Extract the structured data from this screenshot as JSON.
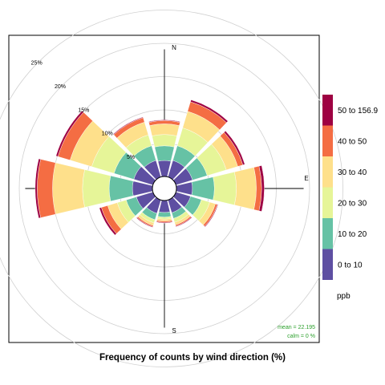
{
  "chart_data": {
    "type": "windrose",
    "title": "Frequency of counts by wind direction (%)",
    "radial_axis": {
      "max": 25,
      "ticks": [
        5,
        10,
        15,
        20,
        25
      ],
      "tick_labels": [
        "5%",
        "10%",
        "15%",
        "20%",
        "25%"
      ]
    },
    "compass_labels": [
      "N",
      "E",
      "S"
    ],
    "directions_deg": [
      0,
      30,
      60,
      90,
      120,
      150,
      180,
      210,
      240,
      270,
      300,
      330
    ],
    "series": [
      {
        "name": "0 to 10",
        "color": "#5E4FA2",
        "values": [
          2.4,
          2.6,
          2.6,
          2.4,
          2.3,
          2.0,
          1.8,
          2.1,
          2.6,
          3.0,
          3.0,
          2.6
        ]
      },
      {
        "name": "10 to 20",
        "color": "#66C2A5",
        "values": [
          2.2,
          2.3,
          2.3,
          3.3,
          1.7,
          0.9,
          0.7,
          1.0,
          1.6,
          3.5,
          3.1,
          2.3
        ]
      },
      {
        "name": "20 to 30",
        "color": "#E6F598",
        "values": [
          1.7,
          2.8,
          3.0,
          3.3,
          1.3,
          0.6,
          0.3,
          0.5,
          1.4,
          4.0,
          3.5,
          1.7
        ]
      },
      {
        "name": "30 to 40",
        "color": "#FEE08B",
        "values": [
          1.6,
          2.6,
          1.8,
          3.0,
          0.9,
          0.4,
          0.3,
          0.4,
          1.5,
          4.5,
          3.4,
          2.0
        ]
      },
      {
        "name": "40 to 50",
        "color": "#F46D43",
        "values": [
          0.5,
          1.5,
          0.8,
          0.8,
          0.3,
          0.2,
          0.2,
          0.2,
          1.0,
          2.3,
          1.9,
          0.7
        ]
      },
      {
        "name": "50 to 156.9",
        "color": "#9E0142",
        "values": [
          0.1,
          0.3,
          0.3,
          0.4,
          0.1,
          0.1,
          0.1,
          0.1,
          0.3,
          0.3,
          0.3,
          0.1
        ]
      }
    ],
    "legend": {
      "position": "right",
      "title": "ppb"
    },
    "annotations": {
      "mean": "mean = 22.195",
      "calm": "calm = 0 %"
    },
    "grid": true
  }
}
